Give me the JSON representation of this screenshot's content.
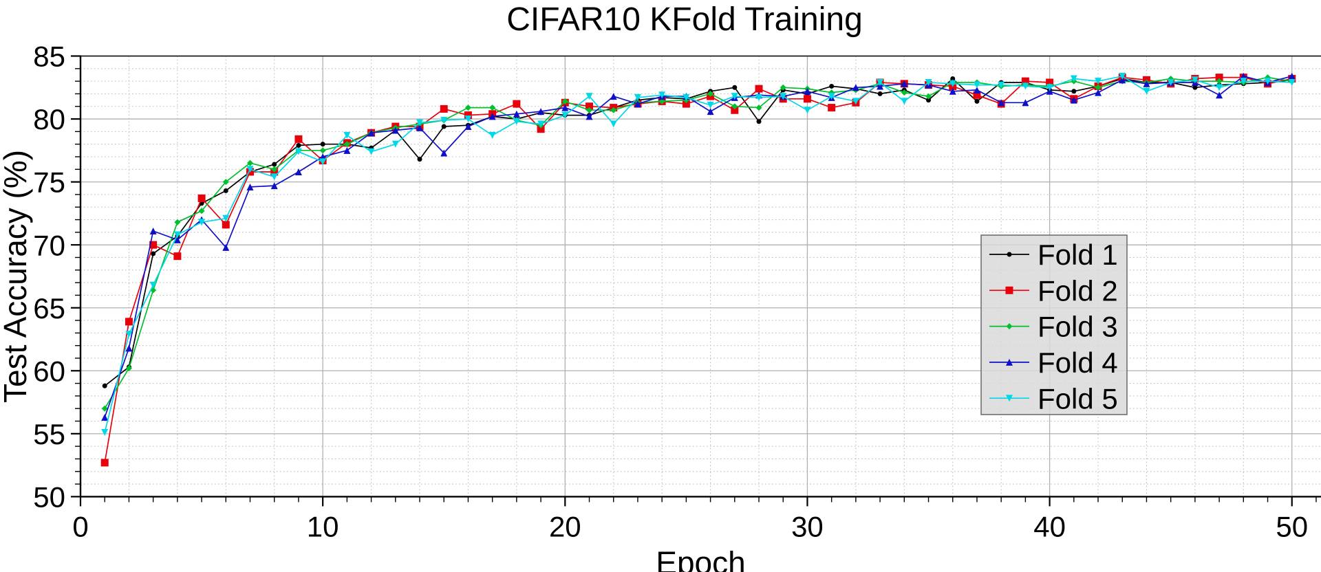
{
  "chart_data": {
    "type": "line",
    "title": "CIFAR10 KFold Training",
    "xlabel": "Epoch",
    "ylabel": "Test Accuracy (%)",
    "xlim": [
      0,
      51.2
    ],
    "ylim": [
      50,
      85
    ],
    "x_major_ticks": [
      0,
      10,
      20,
      30,
      40,
      50
    ],
    "y_major_ticks": [
      50,
      55,
      60,
      65,
      70,
      75,
      80,
      85
    ],
    "x_minor_grid_step": 2,
    "y_minor_grid_step": 1,
    "grid": true,
    "legend_position": "center-right",
    "x": [
      1,
      2,
      3,
      4,
      5,
      6,
      7,
      8,
      9,
      10,
      11,
      12,
      13,
      14,
      15,
      16,
      17,
      18,
      19,
      20,
      21,
      22,
      23,
      24,
      25,
      26,
      27,
      28,
      29,
      30,
      31,
      32,
      33,
      34,
      35,
      36,
      37,
      38,
      39,
      40,
      41,
      42,
      43,
      44,
      45,
      46,
      47,
      48,
      49,
      50
    ],
    "series": [
      {
        "name": "Fold 1",
        "color": "#000000",
        "marker": "circle",
        "marker_size": 7,
        "values": [
          58.8,
          60.3,
          69.3,
          70.7,
          73.3,
          74.3,
          75.8,
          76.4,
          77.9,
          78.0,
          78.0,
          77.7,
          79.1,
          76.8,
          79.4,
          79.5,
          80.2,
          80.0,
          80.5,
          80.3,
          80.3,
          80.9,
          81.5,
          81.7,
          81.6,
          82.2,
          82.5,
          79.8,
          82.3,
          82.0,
          82.6,
          82.4,
          82.0,
          82.3,
          81.5,
          83.2,
          81.4,
          82.9,
          82.9,
          82.3,
          82.2,
          82.6,
          83.2,
          82.9,
          82.9,
          82.5,
          82.7,
          82.8,
          82.9,
          83.1
        ]
      },
      {
        "name": "Fold 2",
        "color": "#e8000b",
        "marker": "square",
        "marker_size": 11,
        "values": [
          52.7,
          63.9,
          70.0,
          69.1,
          73.7,
          71.6,
          75.8,
          75.8,
          78.4,
          76.7,
          78.1,
          78.9,
          79.4,
          79.4,
          80.8,
          80.3,
          80.4,
          81.2,
          79.2,
          81.3,
          81.0,
          80.9,
          81.2,
          81.4,
          81.2,
          81.8,
          80.7,
          82.4,
          81.6,
          81.6,
          80.9,
          81.3,
          82.9,
          82.8,
          82.7,
          82.6,
          81.9,
          81.2,
          83.0,
          82.9,
          81.6,
          82.6,
          83.3,
          83.1,
          82.8,
          83.2,
          83.3,
          83.3,
          82.8,
          83.2
        ]
      },
      {
        "name": "Fold 3",
        "color": "#00c02c",
        "marker": "diamond",
        "marker_size": 9,
        "values": [
          57.0,
          60.2,
          66.4,
          71.8,
          72.7,
          75.0,
          76.5,
          76.0,
          77.5,
          77.5,
          78.0,
          78.9,
          79.3,
          79.6,
          79.9,
          80.9,
          80.9,
          79.9,
          79.5,
          81.4,
          80.7,
          80.7,
          81.3,
          81.4,
          81.5,
          82.0,
          81.0,
          80.9,
          82.5,
          82.4,
          82.1,
          82.3,
          82.8,
          82.1,
          81.8,
          82.9,
          82.9,
          82.6,
          82.7,
          82.6,
          83.0,
          82.5,
          83.0,
          82.9,
          83.2,
          83.0,
          83.0,
          82.9,
          83.3,
          83.0
        ]
      },
      {
        "name": "Fold 4",
        "color": "#0f0fc8",
        "marker": "triangle-up",
        "marker_size": 10,
        "values": [
          56.3,
          61.8,
          71.1,
          70.4,
          72.0,
          69.8,
          74.6,
          74.7,
          75.8,
          77.0,
          77.5,
          78.9,
          79.1,
          79.3,
          77.3,
          79.4,
          80.2,
          80.4,
          80.6,
          80.9,
          80.2,
          81.8,
          81.2,
          81.8,
          81.8,
          80.6,
          81.7,
          81.9,
          81.8,
          82.2,
          81.7,
          82.5,
          82.6,
          82.8,
          82.7,
          82.2,
          82.3,
          81.3,
          81.3,
          82.2,
          81.5,
          82.1,
          83.1,
          82.8,
          82.9,
          82.9,
          81.9,
          83.4,
          82.9,
          83.4
        ]
      },
      {
        "name": "Fold 5",
        "color": "#00d8e8",
        "marker": "triangle-down",
        "marker_size": 10,
        "values": [
          55.1,
          62.9,
          66.8,
          70.8,
          71.8,
          72.1,
          76.0,
          75.4,
          77.4,
          76.6,
          78.7,
          77.4,
          78.0,
          79.7,
          79.9,
          80.0,
          78.7,
          79.8,
          79.6,
          80.3,
          81.8,
          79.6,
          81.7,
          81.9,
          81.7,
          81.1,
          81.8,
          81.7,
          81.8,
          80.7,
          81.8,
          81.4,
          82.9,
          81.4,
          82.9,
          82.8,
          82.7,
          82.7,
          82.6,
          82.5,
          83.2,
          83.0,
          83.4,
          82.2,
          82.9,
          83.1,
          82.5,
          83.0,
          83.0,
          82.9
        ]
      }
    ]
  },
  "legend": {
    "entries": [
      "Fold 1",
      "Fold 2",
      "Fold 3",
      "Fold 4",
      "Fold 5"
    ],
    "background": "#d9d9d9",
    "border_color": "#707070"
  },
  "style": {
    "major_grid_color": "#b0b0b0",
    "minor_grid_color": "#bdbdbd",
    "spine_color": "#000000"
  }
}
